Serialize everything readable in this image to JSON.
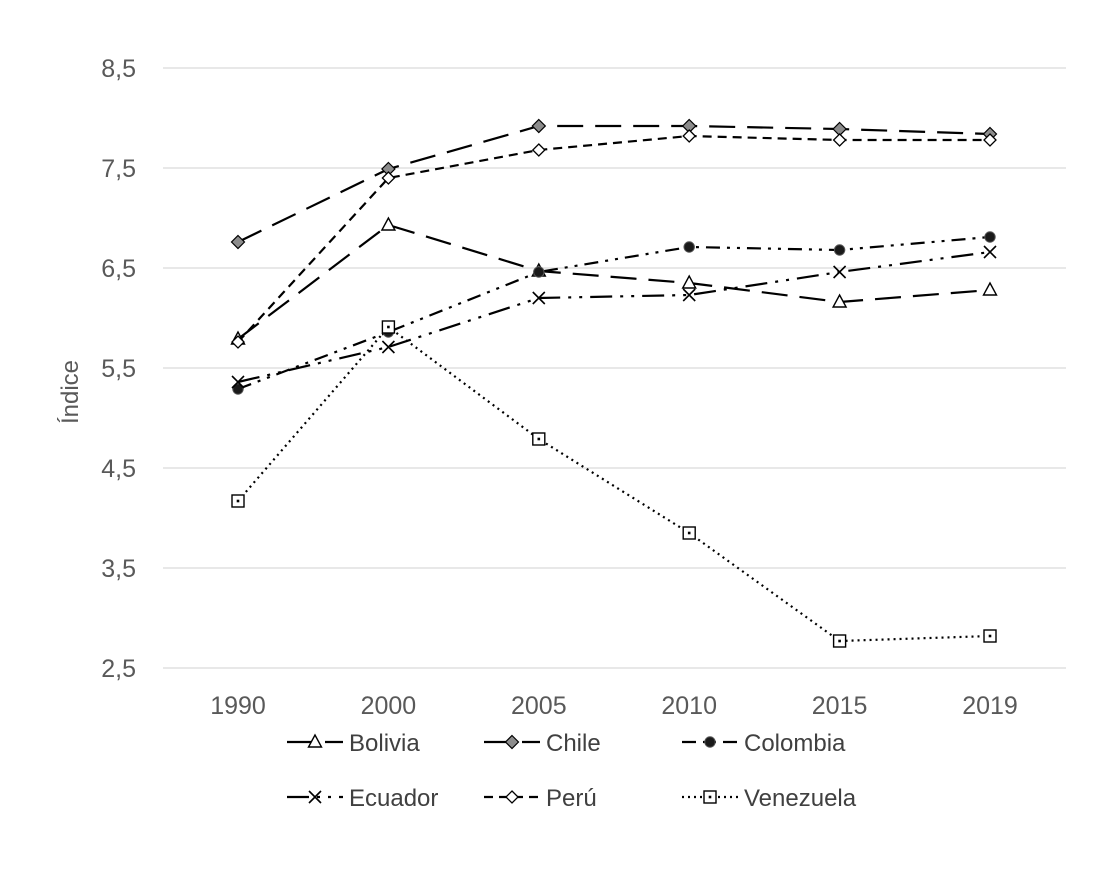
{
  "chart_data": {
    "type": "line",
    "title": "",
    "xlabel": "",
    "ylabel": "Índice",
    "categories": [
      "1990",
      "2000",
      "2005",
      "2010",
      "2015",
      "2019"
    ],
    "ylim": [
      2.5,
      8.5
    ],
    "yticks": [
      "2,5",
      "3,5",
      "4,5",
      "5,5",
      "6,5",
      "7,5",
      "8,5"
    ],
    "ytick_values": [
      2.5,
      3.5,
      4.5,
      5.5,
      6.5,
      7.5,
      8.5
    ],
    "grid": true,
    "legend_position": "bottom",
    "series": [
      {
        "name": "Bolivia",
        "values": [
          5.79,
          6.93,
          6.47,
          6.35,
          6.16,
          6.28
        ],
        "marker": "triangle",
        "dash": "long"
      },
      {
        "name": "Chile",
        "values": [
          6.76,
          7.49,
          7.92,
          7.92,
          7.89,
          7.84
        ],
        "marker": "diamond-filled",
        "dash": "long"
      },
      {
        "name": "Colombia",
        "values": [
          5.29,
          5.86,
          6.46,
          6.71,
          6.68,
          6.81
        ],
        "marker": "circle-filled",
        "dash": "dashdotdot"
      },
      {
        "name": "Ecuador",
        "values": [
          5.36,
          5.71,
          6.2,
          6.23,
          6.46,
          6.66
        ],
        "marker": "x",
        "dash": "longdashdotdot"
      },
      {
        "name": "Perú",
        "values": [
          5.76,
          7.4,
          7.68,
          7.82,
          7.78,
          7.78
        ],
        "marker": "diamond-open",
        "dash": "short"
      },
      {
        "name": "Venezuela",
        "values": [
          4.17,
          5.91,
          4.79,
          3.85,
          2.77,
          2.82
        ],
        "marker": "square",
        "dash": "dot"
      }
    ]
  }
}
